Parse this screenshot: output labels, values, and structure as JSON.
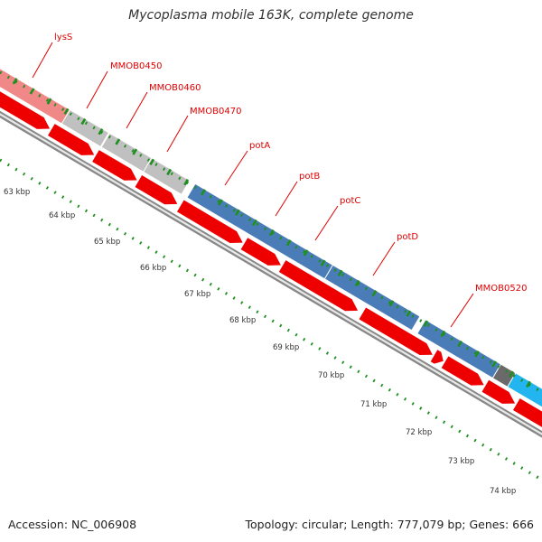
{
  "title": "Mycoplasma mobile 163K, complete genome",
  "footer": {
    "accession": "Accession: NC_006908",
    "info": "Topology: circular; Length: 777,079 bp; Genes: 666"
  },
  "gene_labels": [
    "lysS",
    "MMOB0450",
    "MMOB0460",
    "MMOB0470",
    "potA",
    "potB",
    "potC",
    "potD",
    "MMOB0520"
  ],
  "ticks": [
    "63 kbp",
    "64 kbp",
    "65 kbp",
    "66 kbp",
    "67 kbp",
    "68 kbp",
    "69 kbp",
    "70 kbp",
    "71 kbp",
    "72 kbp",
    "73 kbp",
    "74 kbp"
  ],
  "colors": {
    "gene_label": "#e00000",
    "cds_forward": "#ee0000",
    "cog_light_red": "#f08888",
    "cog_gray": "#c0c0c0",
    "cog_blue": "#4a7db8",
    "cog_dark_gray": "#6a6a6a",
    "cog_cyan": "#22b5f0",
    "tick_green": "#1f8f1f",
    "backbone": "#888888"
  }
}
